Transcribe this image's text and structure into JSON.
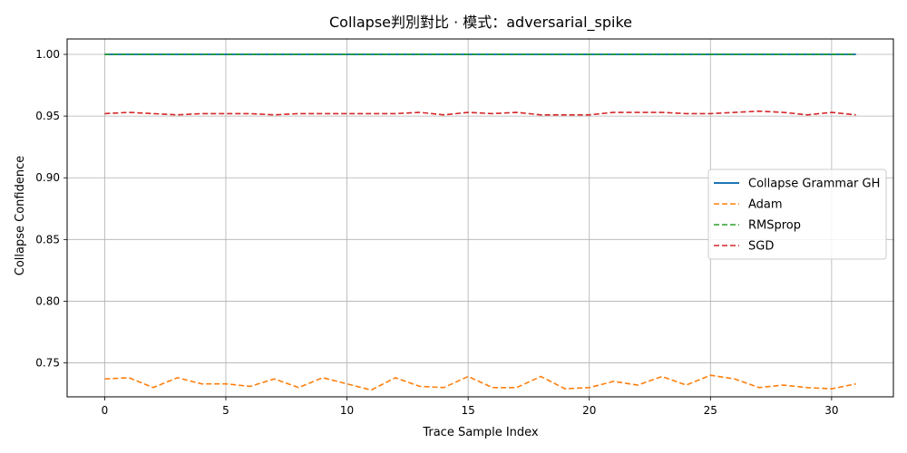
{
  "chart_data": {
    "type": "line",
    "title": "Collapse判別對比 · 模式：adversarial_spike",
    "xlabel": "Trace Sample Index",
    "ylabel": "Collapse Confidence",
    "xlim": [
      -1.55,
      32.55
    ],
    "ylim": [
      0.7225,
      1.0125
    ],
    "xticks": [
      0,
      5,
      10,
      15,
      20,
      25,
      30
    ],
    "yticks": [
      0.75,
      0.8,
      0.85,
      0.9,
      0.95,
      1.0
    ],
    "ytick_labels": [
      "0.75",
      "0.80",
      "0.85",
      "0.90",
      "0.95",
      "1.00"
    ],
    "grid": true,
    "legend_position": "center-right",
    "x": [
      0,
      1,
      2,
      3,
      4,
      5,
      6,
      7,
      8,
      9,
      10,
      11,
      12,
      13,
      14,
      15,
      16,
      17,
      18,
      19,
      20,
      21,
      22,
      23,
      24,
      25,
      26,
      27,
      28,
      29,
      30,
      31
    ],
    "series": [
      {
        "name": "Collapse Grammar GH",
        "color": "#1f77b4",
        "style": "solid",
        "values": [
          1.0,
          1.0,
          1.0,
          1.0,
          1.0,
          1.0,
          1.0,
          1.0,
          1.0,
          1.0,
          1.0,
          1.0,
          1.0,
          1.0,
          1.0,
          1.0,
          1.0,
          1.0,
          1.0,
          1.0,
          1.0,
          1.0,
          1.0,
          1.0,
          1.0,
          1.0,
          1.0,
          1.0,
          1.0,
          1.0,
          1.0,
          1.0
        ]
      },
      {
        "name": "Adam",
        "color": "#ff7f0e",
        "style": "dashed",
        "values": [
          0.737,
          0.738,
          0.73,
          0.738,
          0.733,
          0.733,
          0.731,
          0.737,
          0.73,
          0.738,
          0.733,
          0.728,
          0.738,
          0.731,
          0.73,
          0.739,
          0.73,
          0.73,
          0.739,
          0.729,
          0.73,
          0.735,
          0.732,
          0.739,
          0.732,
          0.74,
          0.737,
          0.73,
          0.732,
          0.73,
          0.729,
          0.733
        ]
      },
      {
        "name": "RMSprop",
        "color": "#2ca02c",
        "style": "dashed",
        "values": [
          1.0,
          1.0,
          1.0,
          1.0,
          1.0,
          1.0,
          1.0,
          1.0,
          1.0,
          1.0,
          1.0,
          1.0,
          1.0,
          1.0,
          1.0,
          1.0,
          1.0,
          1.0,
          1.0,
          1.0,
          1.0,
          1.0,
          1.0,
          1.0,
          1.0,
          1.0,
          1.0,
          1.0,
          1.0,
          1.0,
          1.0,
          1.0
        ]
      },
      {
        "name": "SGD",
        "color": "#d62728",
        "style": "dashed",
        "values": [
          0.952,
          0.953,
          0.952,
          0.951,
          0.952,
          0.952,
          0.952,
          0.951,
          0.952,
          0.952,
          0.952,
          0.952,
          0.952,
          0.953,
          0.951,
          0.953,
          0.952,
          0.953,
          0.951,
          0.951,
          0.951,
          0.953,
          0.953,
          0.953,
          0.952,
          0.952,
          0.953,
          0.954,
          0.953,
          0.951,
          0.953,
          0.951
        ]
      }
    ]
  }
}
